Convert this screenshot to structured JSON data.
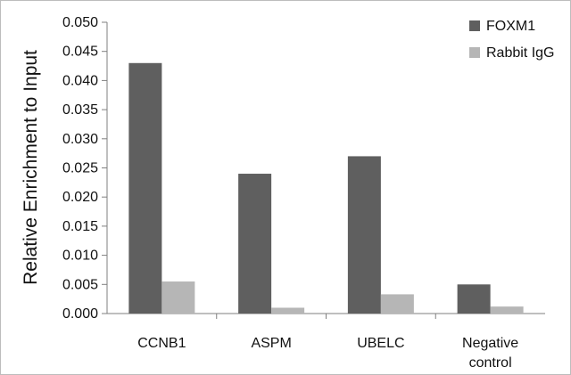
{
  "chart_data": {
    "type": "bar",
    "title": "",
    "xlabel": "",
    "ylabel": "Relative Enrichment to Input",
    "categories": [
      [
        "CCNB1"
      ],
      [
        "ASPM"
      ],
      [
        "UBELC"
      ],
      [
        "Negative",
        "control"
      ]
    ],
    "series": [
      {
        "name": "FOXM1",
        "color": "#5f5f5f",
        "values": [
          0.043,
          0.024,
          0.027,
          0.005
        ]
      },
      {
        "name": "Rabbit IgG",
        "color": "#b6b6b6",
        "values": [
          0.0055,
          0.001,
          0.0033,
          0.0012
        ]
      }
    ],
    "ylim": [
      0,
      0.05
    ],
    "yticks": [
      "0.000",
      "0.005",
      "0.010",
      "0.015",
      "0.020",
      "0.025",
      "0.030",
      "0.035",
      "0.040",
      "0.045",
      "0.050"
    ],
    "grid": false,
    "legend": "top-right"
  }
}
